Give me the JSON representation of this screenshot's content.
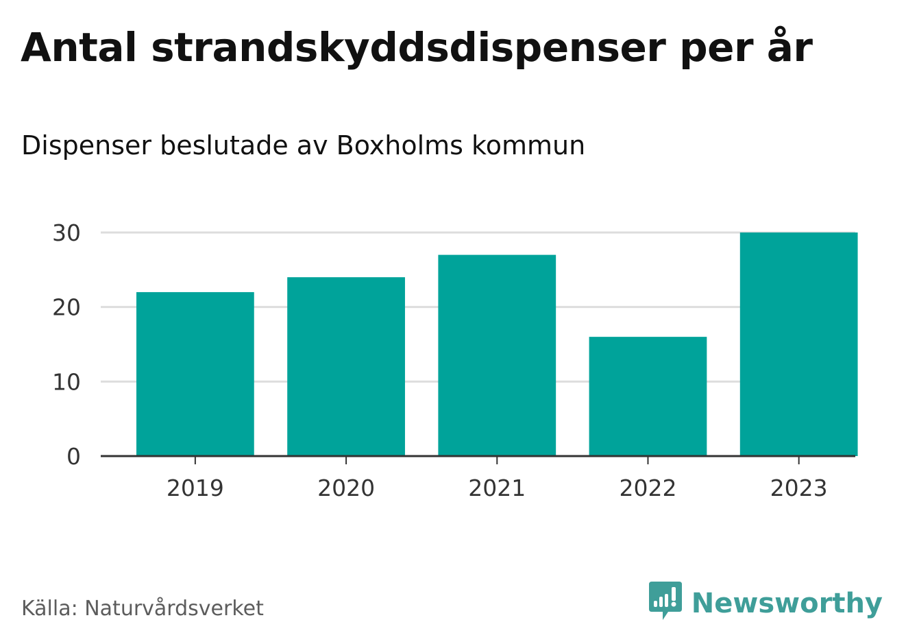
{
  "header": {
    "title": "Antal strandskyddsdispenser per år",
    "subtitle": "Dispenser beslutade av Boxholms kommun"
  },
  "footer": {
    "source": "Källa: Naturvårdsverket",
    "brand": "Newsworthy",
    "brand_icon": "newsworthy-logo-icon",
    "brand_color": "#3f9e99"
  },
  "chart_data": {
    "type": "bar",
    "title": "Antal strandskyddsdispenser per år",
    "subtitle": "Dispenser beslutade av Boxholms kommun",
    "xlabel": "",
    "ylabel": "",
    "categories": [
      "2019",
      "2020",
      "2021",
      "2022",
      "2023"
    ],
    "values": [
      22,
      24,
      27,
      16,
      30
    ],
    "ylim": [
      0,
      30
    ],
    "yticks": [
      0,
      10,
      20,
      30
    ],
    "grid": true,
    "bar_color": "#00a39a",
    "grid_color": "#dddddd",
    "axis_color": "#333333"
  }
}
